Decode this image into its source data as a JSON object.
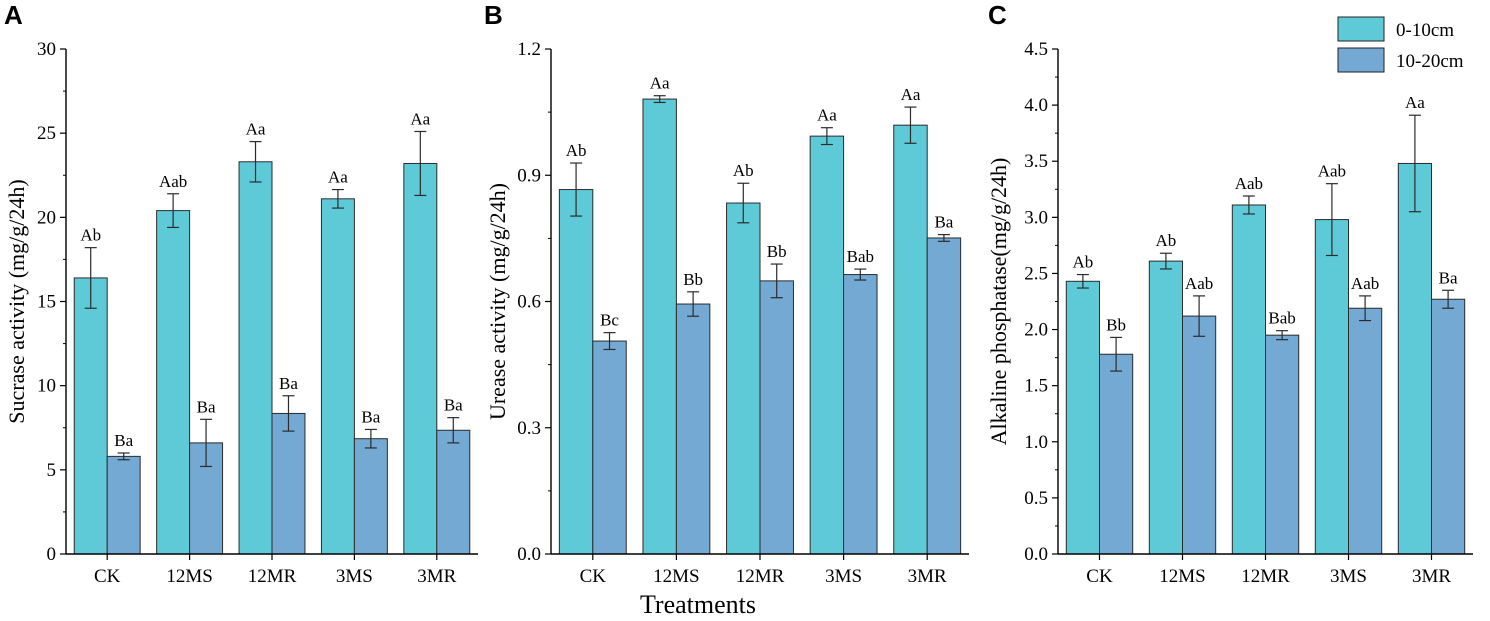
{
  "figure": {
    "shared_xlabel": "Treatments"
  },
  "legend": [
    {
      "name": "0-10cm",
      "color": "#5ECAD8"
    },
    {
      "name": "10-20cm",
      "color": "#74A9D4"
    }
  ],
  "chart_data": [
    {
      "type": "bar",
      "panel": "A",
      "categories": [
        "CK",
        "12MS",
        "12MR",
        "3MS",
        "3MR"
      ],
      "ylabel": "Sucrase activity (mg/g/24h)",
      "ylim": [
        0,
        30
      ],
      "yticks": [
        "0",
        "5",
        "10",
        "15",
        "20",
        "25",
        "30"
      ],
      "series": [
        {
          "name": "0-10cm",
          "values": [
            16.4,
            20.4,
            23.3,
            21.1,
            23.2
          ],
          "errors": [
            1.8,
            1.0,
            1.2,
            0.55,
            1.9
          ],
          "letters": [
            "Ab",
            "Aab",
            "Aa",
            "Aa",
            "Aa"
          ]
        },
        {
          "name": "10-20cm",
          "values": [
            5.8,
            6.6,
            8.35,
            6.85,
            7.35
          ],
          "errors": [
            0.2,
            1.4,
            1.05,
            0.55,
            0.75
          ],
          "letters": [
            "Ba",
            "Ba",
            "Ba",
            "Ba",
            "Ba"
          ]
        }
      ]
    },
    {
      "type": "bar",
      "panel": "B",
      "categories": [
        "CK",
        "12MS",
        "12MR",
        "3MS",
        "3MR"
      ],
      "ylabel": "Urease activity (mg/g/24h)",
      "ylim": [
        0,
        1.2
      ],
      "yticks": [
        "0.0",
        "0.3",
        "0.6",
        "0.9",
        "1.2"
      ],
      "series": [
        {
          "name": "0-10cm",
          "values": [
            0.866,
            1.081,
            0.834,
            0.993,
            1.019
          ],
          "errors": [
            0.063,
            0.008,
            0.047,
            0.02,
            0.043
          ],
          "letters": [
            "Ab",
            "Aa",
            "Ab",
            "Aa",
            "Aa"
          ]
        },
        {
          "name": "10-20cm",
          "values": [
            0.506,
            0.594,
            0.649,
            0.664,
            0.751
          ],
          "errors": [
            0.02,
            0.029,
            0.04,
            0.013,
            0.008
          ],
          "letters": [
            "Bc",
            "Bb",
            "Bb",
            "Bab",
            "Ba"
          ]
        }
      ]
    },
    {
      "type": "bar",
      "panel": "C",
      "categories": [
        "CK",
        "12MS",
        "12MR",
        "3MS",
        "3MR"
      ],
      "ylabel": "Alkaline phosphatase(mg/g/24h)",
      "ylim": [
        0,
        4.5
      ],
      "yticks": [
        "0.0",
        "0.5",
        "1.0",
        "1.5",
        "2.0",
        "2.5",
        "3.0",
        "3.5",
        "4.0",
        "4.5"
      ],
      "series": [
        {
          "name": "0-10cm",
          "values": [
            2.43,
            2.61,
            3.11,
            2.98,
            3.48
          ],
          "errors": [
            0.06,
            0.07,
            0.08,
            0.32,
            0.43
          ],
          "letters": [
            "Ab",
            "Ab",
            "Aab",
            "Aab",
            "Aa"
          ]
        },
        {
          "name": "10-20cm",
          "values": [
            1.78,
            2.12,
            1.95,
            2.19,
            2.27
          ],
          "errors": [
            0.15,
            0.18,
            0.04,
            0.11,
            0.08
          ],
          "letters": [
            "Bb",
            "Aab",
            "Bab",
            "Aab",
            "Ba"
          ]
        }
      ]
    }
  ]
}
